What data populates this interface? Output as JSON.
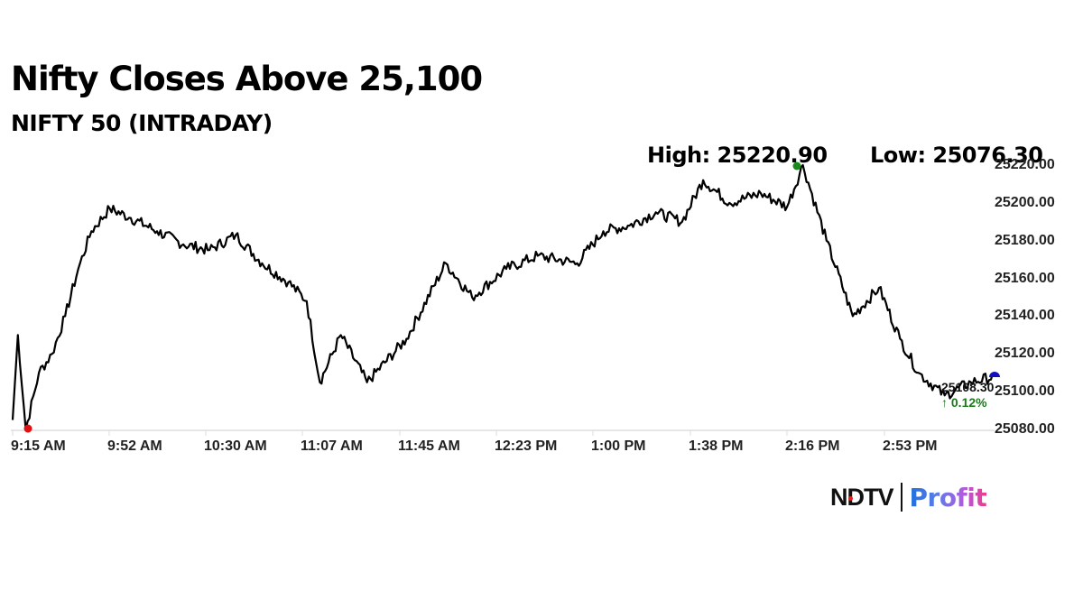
{
  "header": {
    "title": "Nifty Closes Above 25,100",
    "subtitle": "NIFTY 50 (INTRADAY)"
  },
  "stats": {
    "high_label": "High: 25220.90",
    "low_label": "Low: 25076.30"
  },
  "last": {
    "price": "25108.30",
    "change": "↑ 0.12%"
  },
  "colors": {
    "line": "#000000",
    "high_marker": "#1a8a1a",
    "low_marker": "#e01010",
    "last_marker": "#1010c0",
    "positive": "#1a7a1a",
    "axis": "#dddddd"
  },
  "brand": {
    "ndtv": "NDTV",
    "profit": "Profit"
  },
  "chart_data": {
    "type": "line",
    "title": "Nifty Closes Above 25,100",
    "subtitle": "NIFTY 50 (INTRADAY)",
    "xlabel": "",
    "ylabel": "",
    "ylim": [
      25080,
      25220
    ],
    "y_ticks": [
      "25220.00",
      "25200.00",
      "25180.00",
      "25160.00",
      "25140.00",
      "25120.00",
      "25100.00",
      "25080.00"
    ],
    "x_ticks": [
      "9:15 AM",
      "9:52 AM",
      "10:30 AM",
      "11:07 AM",
      "11:45 AM",
      "12:23 PM",
      "1:00 PM",
      "1:38 PM",
      "2:16 PM",
      "2:53 PM"
    ],
    "grid": false,
    "legend": null,
    "annotations": {
      "high": 25220.9,
      "low": 25076.3,
      "last": 25108.3,
      "change_pct": 0.12
    },
    "values_are_estimates": true,
    "series": [
      {
        "name": "NIFTY 50",
        "x": [
          "9:15",
          "9:17",
          "9:20",
          "9:25",
          "9:30",
          "9:35",
          "9:40",
          "9:45",
          "9:52",
          "10:00",
          "10:10",
          "10:20",
          "10:30",
          "10:40",
          "10:50",
          "11:00",
          "11:07",
          "11:12",
          "11:20",
          "11:30",
          "11:45",
          "12:00",
          "12:10",
          "12:23",
          "12:35",
          "12:50",
          "1:00",
          "1:10",
          "1:20",
          "1:30",
          "1:38",
          "1:48",
          "2:00",
          "2:10",
          "2:16",
          "2:25",
          "2:35",
          "2:45",
          "2:53",
          "3:00",
          "3:10",
          "3:20",
          "3:29"
        ],
        "values": [
          25085,
          25130,
          25080,
          25110,
          25120,
          25140,
          25165,
          25185,
          25197,
          25192,
          25185,
          25178,
          25175,
          25183,
          25168,
          25158,
          25148,
          25105,
          25130,
          25105,
          25128,
          25168,
          25150,
          25165,
          25172,
          25168,
          25185,
          25188,
          25195,
          25190,
          25212,
          25200,
          25205,
          25198,
          25220,
          25180,
          25140,
          25155,
          25128,
          25110,
          25098,
          25105,
          25108
        ]
      }
    ]
  }
}
